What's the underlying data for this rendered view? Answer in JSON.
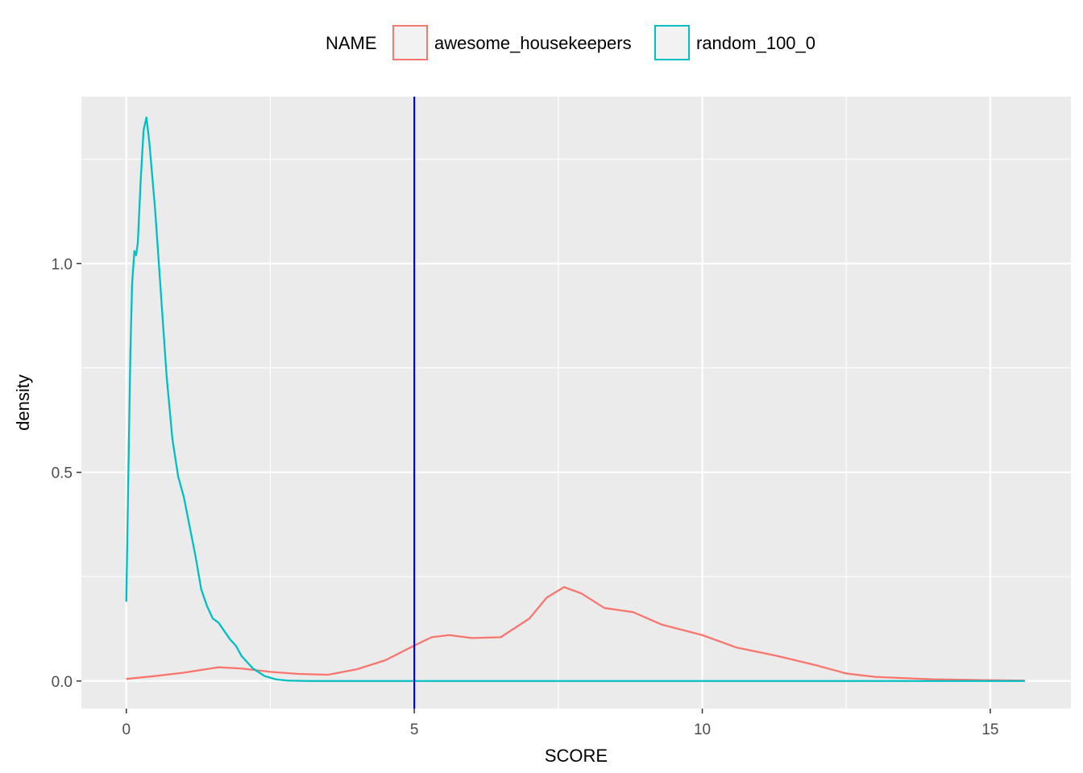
{
  "chart_data": {
    "type": "line",
    "subtype": "density",
    "xlabel": "SCORE",
    "ylabel": "density",
    "xlim": [
      -0.78,
      16.4
    ],
    "ylim": [
      -0.066,
      1.4
    ],
    "x_ticks": [
      0,
      5,
      10,
      15
    ],
    "x_tick_labels": [
      "0",
      "5",
      "10",
      "15"
    ],
    "y_ticks": [
      0.0,
      0.5,
      1.0
    ],
    "y_tick_labels": [
      "0.0",
      "0.5",
      "1.0"
    ],
    "grid": true,
    "panel_background": "#ebebeb",
    "legend": {
      "title": "NAME",
      "position": "top",
      "entries": [
        "awesome_housekeepers",
        "random_100_0"
      ]
    },
    "vline": {
      "x": 5,
      "color": "#0000ee"
    },
    "series": [
      {
        "name": "awesome_housekeepers",
        "color": "#f8766d",
        "points": [
          [
            0,
            0.005
          ],
          [
            0.5,
            0.012
          ],
          [
            1.0,
            0.02
          ],
          [
            1.6,
            0.033
          ],
          [
            2.0,
            0.03
          ],
          [
            2.5,
            0.022
          ],
          [
            3.0,
            0.017
          ],
          [
            3.5,
            0.015
          ],
          [
            4.0,
            0.028
          ],
          [
            4.5,
            0.05
          ],
          [
            5.0,
            0.085
          ],
          [
            5.3,
            0.105
          ],
          [
            5.6,
            0.11
          ],
          [
            6.0,
            0.103
          ],
          [
            6.5,
            0.105
          ],
          [
            7.0,
            0.15
          ],
          [
            7.3,
            0.2
          ],
          [
            7.6,
            0.225
          ],
          [
            7.9,
            0.21
          ],
          [
            8.3,
            0.175
          ],
          [
            8.8,
            0.165
          ],
          [
            9.3,
            0.135
          ],
          [
            10.0,
            0.11
          ],
          [
            10.6,
            0.08
          ],
          [
            11.3,
            0.06
          ],
          [
            12.0,
            0.037
          ],
          [
            12.5,
            0.018
          ],
          [
            13.0,
            0.01
          ],
          [
            14.0,
            0.004
          ],
          [
            15.0,
            0.002
          ],
          [
            15.6,
            0.001
          ]
        ]
      },
      {
        "name": "random_100_0",
        "color": "#00bfc4",
        "points": [
          [
            0.0,
            0.19
          ],
          [
            0.03,
            0.45
          ],
          [
            0.07,
            0.78
          ],
          [
            0.1,
            0.95
          ],
          [
            0.14,
            1.03
          ],
          [
            0.17,
            1.02
          ],
          [
            0.2,
            1.05
          ],
          [
            0.25,
            1.2
          ],
          [
            0.3,
            1.32
          ],
          [
            0.35,
            1.35
          ],
          [
            0.4,
            1.29
          ],
          [
            0.5,
            1.13
          ],
          [
            0.6,
            0.93
          ],
          [
            0.7,
            0.73
          ],
          [
            0.8,
            0.58
          ],
          [
            0.9,
            0.49
          ],
          [
            1.0,
            0.44
          ],
          [
            1.1,
            0.37
          ],
          [
            1.2,
            0.3
          ],
          [
            1.3,
            0.22
          ],
          [
            1.4,
            0.18
          ],
          [
            1.5,
            0.15
          ],
          [
            1.6,
            0.14
          ],
          [
            1.7,
            0.12
          ],
          [
            1.8,
            0.1
          ],
          [
            1.9,
            0.085
          ],
          [
            2.0,
            0.06
          ],
          [
            2.2,
            0.03
          ],
          [
            2.4,
            0.012
          ],
          [
            2.6,
            0.004
          ],
          [
            2.8,
            0.001
          ],
          [
            3.2,
            0.0
          ],
          [
            15.6,
            0.0
          ]
        ]
      }
    ]
  }
}
